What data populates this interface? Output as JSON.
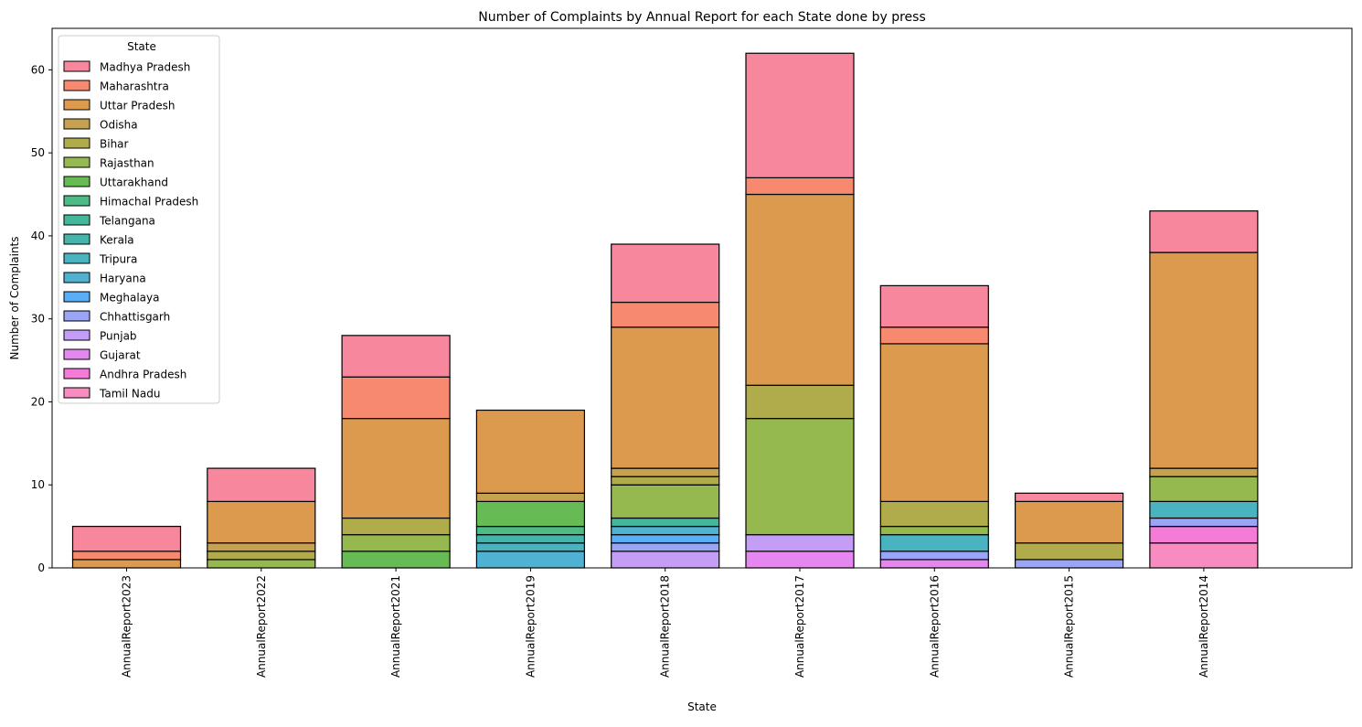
{
  "chart_data": {
    "type": "bar",
    "stacked": true,
    "title": "Number of Complaints by Annual Report for each State done by press",
    "xlabel": "State",
    "ylabel": "Number of Complaints",
    "ylim": [
      0,
      65
    ],
    "yticks": [
      0,
      10,
      20,
      30,
      40,
      50,
      60
    ],
    "grid": false,
    "legend": {
      "title": "State",
      "position": "top-left"
    },
    "categories": [
      "AnnualReport2023",
      "AnnualReport2022",
      "AnnualReport2021",
      "AnnualReport2019",
      "AnnualReport2018",
      "AnnualReport2017",
      "AnnualReport2016",
      "AnnualReport2015",
      "AnnualReport2014"
    ],
    "series": [
      {
        "name": "Madhya Pradesh",
        "color": "#f7879c",
        "values": [
          3,
          4,
          5,
          0,
          7,
          15,
          5,
          1,
          5
        ]
      },
      {
        "name": "Maharashtra",
        "color": "#f7896e",
        "values": [
          1,
          0,
          5,
          0,
          3,
          2,
          2,
          0,
          0
        ]
      },
      {
        "name": "Uttar Pradesh",
        "color": "#db9a4e",
        "values": [
          1,
          5,
          12,
          10,
          17,
          23,
          19,
          5,
          26
        ]
      },
      {
        "name": "Odisha",
        "color": "#c6a250",
        "values": [
          0,
          1,
          0,
          1,
          1,
          0,
          0,
          0,
          1
        ]
      },
      {
        "name": "Bihar",
        "color": "#b0ab4b",
        "values": [
          0,
          1,
          2,
          0,
          1,
          4,
          3,
          2,
          0
        ]
      },
      {
        "name": "Rajasthan",
        "color": "#95b84f",
        "values": [
          0,
          1,
          2,
          0,
          4,
          14,
          1,
          0,
          3
        ]
      },
      {
        "name": "Uttarakhand",
        "color": "#66bb55",
        "values": [
          0,
          0,
          2,
          3,
          0,
          0,
          0,
          0,
          0
        ]
      },
      {
        "name": "Himachal Pradesh",
        "color": "#4cbb85",
        "values": [
          0,
          0,
          0,
          1,
          0,
          0,
          0,
          0,
          0
        ]
      },
      {
        "name": "Telangana",
        "color": "#43b799",
        "values": [
          0,
          0,
          0,
          0,
          1,
          0,
          0,
          0,
          0
        ]
      },
      {
        "name": "Kerala",
        "color": "#45b5ac",
        "values": [
          0,
          0,
          0,
          1,
          0,
          0,
          0,
          0,
          0
        ]
      },
      {
        "name": "Tripura",
        "color": "#4ab3c0",
        "values": [
          0,
          0,
          0,
          1,
          0,
          0,
          2,
          0,
          2
        ]
      },
      {
        "name": "Haryana",
        "color": "#4fb2d3",
        "values": [
          0,
          0,
          0,
          2,
          1,
          0,
          0,
          0,
          0
        ]
      },
      {
        "name": "Meghalaya",
        "color": "#5aaef5",
        "values": [
          0,
          0,
          0,
          0,
          1,
          0,
          0,
          0,
          0
        ]
      },
      {
        "name": "Chhattisgarh",
        "color": "#9aa5f7",
        "values": [
          0,
          0,
          0,
          0,
          1,
          0,
          1,
          1,
          1
        ]
      },
      {
        "name": "Punjab",
        "color": "#c39df6",
        "values": [
          0,
          0,
          0,
          0,
          2,
          2,
          0,
          0,
          0
        ]
      },
      {
        "name": "Gujarat",
        "color": "#e687f1",
        "values": [
          0,
          0,
          0,
          0,
          0,
          2,
          1,
          0,
          0
        ]
      },
      {
        "name": "Andhra Pradesh",
        "color": "#f57bd9",
        "values": [
          0,
          0,
          0,
          0,
          0,
          0,
          0,
          0,
          2
        ]
      },
      {
        "name": "Tamil Nadu",
        "color": "#f78bc2",
        "values": [
          0,
          0,
          0,
          0,
          0,
          0,
          0,
          0,
          3
        ]
      }
    ]
  }
}
